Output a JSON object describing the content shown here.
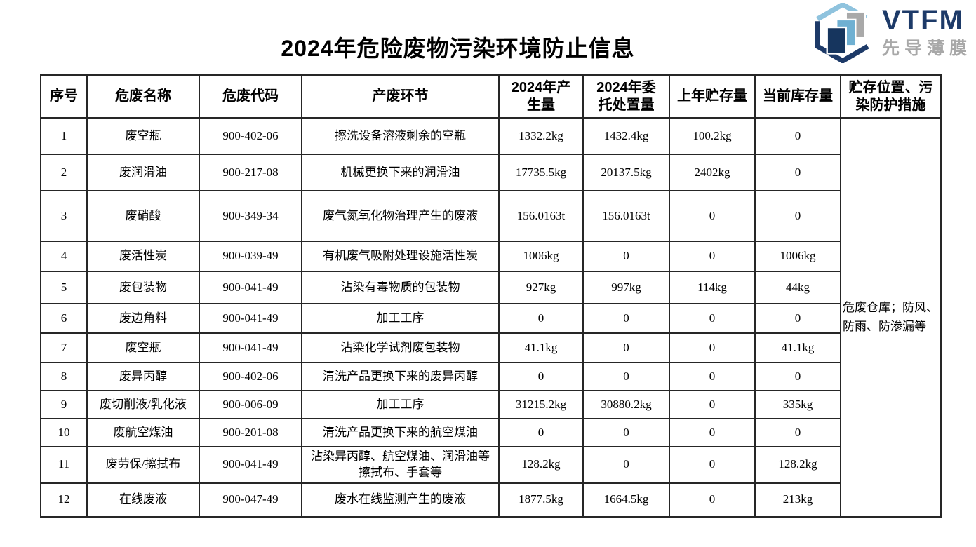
{
  "page": {
    "title": "2024年危险废物污染环境防止信息"
  },
  "logo": {
    "brand": "VTFM",
    "subtitle": "先导薄膜",
    "brand_color": "#1d3a68",
    "subtitle_color": "#a8a8a8",
    "icon": "hexagon-layers-icon",
    "icon_colors": {
      "navy": "#16355e",
      "light_blue": "#6fb0d2",
      "pale_blue": "#8fc3de",
      "gray": "#a9a9a9"
    }
  },
  "table": {
    "headers": [
      "序号",
      "危废名称",
      "危废代码",
      "产废环节",
      "2024年产生量",
      "2024年委托处置量",
      "上年贮存量",
      "当前库存量",
      "贮存位置、污染防护措施"
    ],
    "storage_note": "危废仓库；防风、防雨、防渗漏等",
    "rows": [
      {
        "no": "1",
        "name": "废空瓶",
        "code": "900-402-06",
        "stage": "擦洗设备溶液剩余的空瓶",
        "produced": "1332.2kg",
        "disposed": "1432.4kg",
        "prev": "100.2kg",
        "stock": "0"
      },
      {
        "no": "2",
        "name": "废润滑油",
        "code": "900-217-08",
        "stage": "机械更换下来的润滑油",
        "produced": "17735.5kg",
        "disposed": "20137.5kg",
        "prev": "2402kg",
        "stock": "0"
      },
      {
        "no": "3",
        "name": "废硝酸",
        "code": "900-349-34",
        "stage": "废气氮氧化物治理产生的废液",
        "produced": "156.0163t",
        "disposed": "156.0163t",
        "prev": "0",
        "stock": "0"
      },
      {
        "no": "4",
        "name": "废活性炭",
        "code": "900-039-49",
        "stage": "有机废气吸附处理设施活性炭",
        "produced": "1006kg",
        "disposed": "0",
        "prev": "0",
        "stock": "1006kg"
      },
      {
        "no": "5",
        "name": "废包装物",
        "code": "900-041-49",
        "stage": "沾染有毒物质的包装物",
        "produced": "927kg",
        "disposed": "997kg",
        "prev": "114kg",
        "stock": "44kg"
      },
      {
        "no": "6",
        "name": "废边角料",
        "code": "900-041-49",
        "stage": "加工工序",
        "produced": "0",
        "disposed": "0",
        "prev": "0",
        "stock": "0"
      },
      {
        "no": "7",
        "name": "废空瓶",
        "code": "900-041-49",
        "stage": "沾染化学试剂废包装物",
        "produced": "41.1kg",
        "disposed": "0",
        "prev": "0",
        "stock": "41.1kg"
      },
      {
        "no": "8",
        "name": "废异丙醇",
        "code": "900-402-06",
        "stage": "清洗产品更换下来的废异丙醇",
        "produced": "0",
        "disposed": "0",
        "prev": "0",
        "stock": "0"
      },
      {
        "no": "9",
        "name": "废切削液/乳化液",
        "code": "900-006-09",
        "stage": "加工工序",
        "produced": "31215.2kg",
        "disposed": "30880.2kg",
        "prev": "0",
        "stock": "335kg"
      },
      {
        "no": "10",
        "name": "废航空煤油",
        "code": "900-201-08",
        "stage": "清洗产品更换下来的航空煤油",
        "produced": "0",
        "disposed": "0",
        "prev": "0",
        "stock": "0"
      },
      {
        "no": "11",
        "name": "废劳保/擦拭布",
        "code": "900-041-49",
        "stage": "沾染异丙醇、航空煤油、润滑油等擦拭布、手套等",
        "produced": "128.2kg",
        "disposed": "0",
        "prev": "0",
        "stock": "128.2kg"
      },
      {
        "no": "12",
        "name": "在线废液",
        "code": "900-047-49",
        "stage": "废水在线监测产生的废液",
        "produced": "1877.5kg",
        "disposed": "1664.5kg",
        "prev": "0",
        "stock": "213kg"
      }
    ]
  }
}
